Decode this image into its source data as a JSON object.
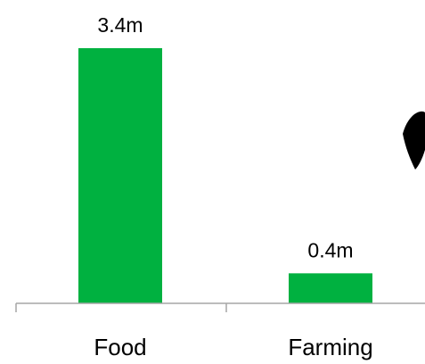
{
  "chart_data": {
    "type": "bar",
    "categories": [
      "Food",
      "Farming"
    ],
    "values": [
      3.4,
      0.4
    ],
    "data_labels": [
      "3.4m",
      "0.4m"
    ],
    "title": "",
    "xlabel": "",
    "ylabel": "",
    "ylim": [
      0,
      3.4
    ],
    "grid": false,
    "bar_color": "#00b140",
    "axis_color": "#a6a6a6"
  }
}
